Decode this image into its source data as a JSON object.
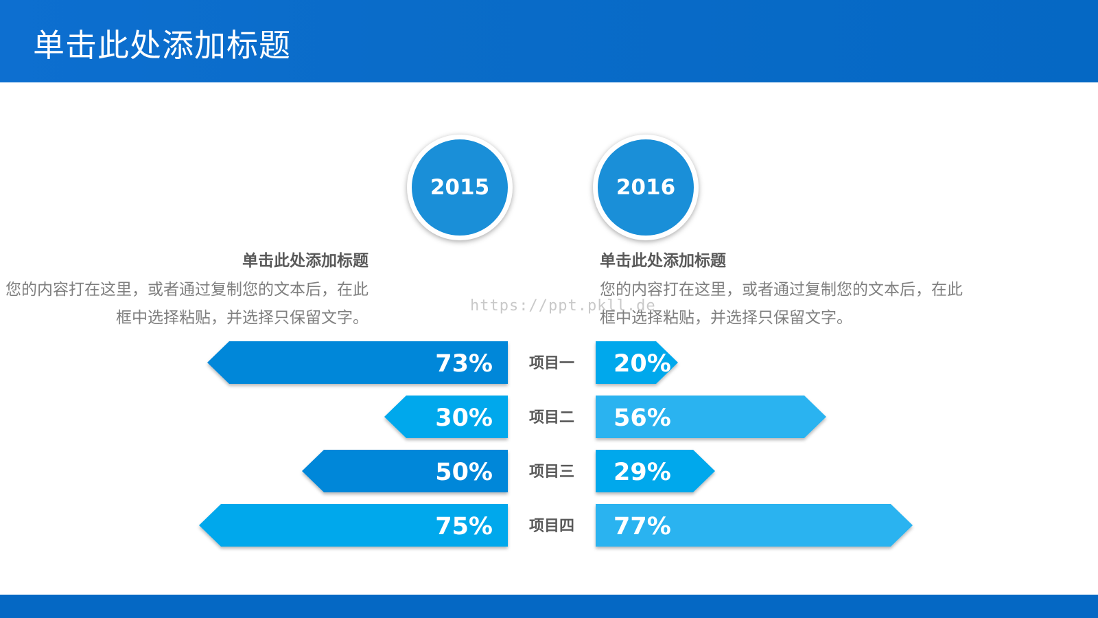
{
  "header": {
    "title": "单击此处添加标题"
  },
  "columns": [
    {
      "year": "2015",
      "title": "单击此处添加标题",
      "body_lines": [
        "您的内容打在这里，或者通过复制您的文本后，在此",
        "框中选择粘贴，并选择只保留文字。"
      ]
    },
    {
      "year": "2016",
      "title": "单击此处添加标题",
      "body_lines": [
        "您的内容打在这里，或者通过复制您的文本后，在此",
        "框中选择粘贴，并选择只保留文字。"
      ]
    }
  ],
  "watermark": "https://ppt.pkll.de",
  "colors": {
    "header": "#0568c4",
    "dark_blue": "#0587d9",
    "light_blue": "#00a8ec",
    "lighter_blue": "#2bb3f0",
    "label": "#595959"
  },
  "chart_data": {
    "type": "bar",
    "categories": [
      "项目一",
      "项目二",
      "项目三",
      "项目四"
    ],
    "series": [
      {
        "name": "2015",
        "values": [
          73,
          30,
          50,
          75
        ],
        "labels": [
          "73%",
          "30%",
          "50%",
          "75%"
        ]
      },
      {
        "name": "2016",
        "values": [
          20,
          56,
          29,
          77
        ],
        "labels": [
          "20%",
          "56%",
          "29%",
          "77%"
        ]
      }
    ],
    "xlim": [
      0,
      100
    ],
    "grid": false
  }
}
